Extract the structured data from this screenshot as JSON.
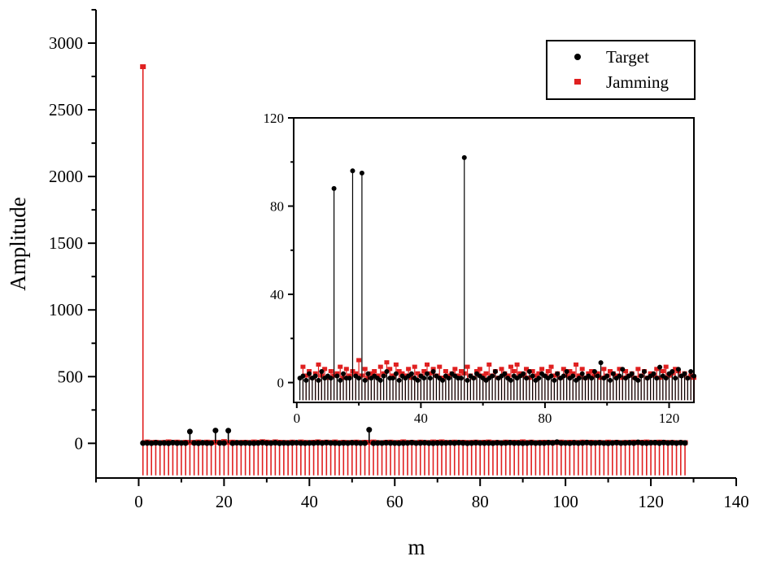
{
  "colors": {
    "target": "#000000",
    "jamming": "#e02020",
    "axis": "#000000"
  },
  "chart_data": [
    {
      "type": "stem",
      "panel": "main",
      "title": "",
      "xlabel": "m",
      "ylabel": "Amplitude",
      "xlim": [
        -10,
        140
      ],
      "ylim": [
        -260,
        3250
      ],
      "xticks": [
        0,
        20,
        40,
        60,
        80,
        100,
        120,
        140
      ],
      "yticks": [
        0,
        500,
        1000,
        1500,
        2000,
        2500,
        3000
      ],
      "grid": false,
      "legend": {
        "position": "top-right",
        "entries": [
          "Target",
          "Jamming"
        ]
      },
      "series": [
        {
          "name": "Target",
          "marker": "circle",
          "baseline": 0,
          "x": [
            1,
            2,
            3,
            4,
            5,
            6,
            7,
            8,
            9,
            10,
            11,
            12,
            13,
            14,
            15,
            16,
            17,
            18,
            19,
            20,
            21,
            22,
            23,
            24,
            25,
            26,
            27,
            28,
            29,
            30,
            31,
            32,
            33,
            34,
            35,
            36,
            37,
            38,
            39,
            40,
            41,
            42,
            43,
            44,
            45,
            46,
            47,
            48,
            49,
            50,
            51,
            52,
            53,
            54,
            55,
            56,
            57,
            58,
            59,
            60,
            61,
            62,
            63,
            64,
            65,
            66,
            67,
            68,
            69,
            70,
            71,
            72,
            73,
            74,
            75,
            76,
            77,
            78,
            79,
            80,
            81,
            82,
            83,
            84,
            85,
            86,
            87,
            88,
            89,
            90,
            91,
            92,
            93,
            94,
            95,
            96,
            97,
            98,
            99,
            100,
            101,
            102,
            103,
            104,
            105,
            106,
            107,
            108,
            109,
            110,
            111,
            112,
            113,
            114,
            115,
            116,
            117,
            118,
            119,
            120,
            121,
            122,
            123,
            124,
            125,
            126,
            127,
            128
          ],
          "y": [
            2,
            3,
            1,
            4,
            2,
            3,
            1,
            5,
            2,
            3,
            2,
            88,
            3,
            1,
            4,
            2,
            2,
            96,
            3,
            2,
            95,
            1,
            4,
            2,
            3,
            2,
            1,
            3,
            5,
            2,
            2,
            4,
            1,
            3,
            2,
            3,
            4,
            2,
            1,
            3,
            2,
            4,
            2,
            5,
            3,
            2,
            1,
            3,
            2,
            4,
            3,
            2,
            2,
            102,
            1,
            3,
            2,
            4,
            3,
            2,
            1,
            2,
            3,
            5,
            2,
            3,
            4,
            2,
            1,
            3,
            2,
            3,
            4,
            2,
            5,
            3,
            1,
            2,
            4,
            3,
            2,
            3,
            1,
            4,
            2,
            3,
            5,
            2,
            3,
            1,
            2,
            4,
            2,
            3,
            2,
            5,
            3,
            9,
            2,
            3,
            1,
            4,
            2,
            3,
            6,
            2,
            3,
            4,
            2,
            1,
            3,
            5,
            2,
            3,
            4,
            2,
            7,
            3,
            2,
            4,
            5,
            2,
            6,
            3,
            4,
            2,
            5,
            3
          ]
        },
        {
          "name": "Jamming",
          "marker": "square",
          "baseline": -240,
          "x": [
            1,
            2,
            3,
            4,
            5,
            6,
            7,
            8,
            9,
            10,
            11,
            12,
            13,
            14,
            15,
            16,
            17,
            18,
            19,
            20,
            21,
            22,
            23,
            24,
            25,
            26,
            27,
            28,
            29,
            30,
            31,
            32,
            33,
            34,
            35,
            36,
            37,
            38,
            39,
            40,
            41,
            42,
            43,
            44,
            45,
            46,
            47,
            48,
            49,
            50,
            51,
            52,
            53,
            54,
            55,
            56,
            57,
            58,
            59,
            60,
            61,
            62,
            63,
            64,
            65,
            66,
            67,
            68,
            69,
            70,
            71,
            72,
            73,
            74,
            75,
            76,
            77,
            78,
            79,
            80,
            81,
            82,
            83,
            84,
            85,
            86,
            87,
            88,
            89,
            90,
            91,
            92,
            93,
            94,
            95,
            96,
            97,
            98,
            99,
            100,
            101,
            102,
            103,
            104,
            105,
            106,
            107,
            108,
            109,
            110,
            111,
            112,
            113,
            114,
            115,
            116,
            117,
            118,
            119,
            120,
            121,
            122,
            123,
            124,
            125,
            126,
            127,
            128
          ],
          "y": [
            2820,
            7,
            3,
            5,
            2,
            4,
            8,
            3,
            6,
            2,
            5,
            3,
            4,
            7,
            2,
            6,
            3,
            5,
            4,
            10,
            3,
            6,
            2,
            4,
            5,
            3,
            7,
            4,
            9,
            6,
            3,
            8,
            5,
            4,
            3,
            6,
            2,
            7,
            4,
            3,
            5,
            8,
            4,
            6,
            3,
            7,
            2,
            5,
            3,
            4,
            6,
            3,
            5,
            4,
            7,
            3,
            2,
            5,
            6,
            3,
            4,
            8,
            3,
            5,
            2,
            6,
            4,
            3,
            7,
            5,
            8,
            4,
            3,
            6,
            2,
            5,
            3,
            4,
            6,
            3,
            5,
            7,
            3,
            4,
            2,
            6,
            3,
            5,
            4,
            8,
            3,
            6,
            2,
            4,
            5,
            3,
            4,
            2,
            6,
            3,
            5,
            4,
            3,
            6,
            2,
            5,
            3,
            4,
            2,
            6,
            3,
            5,
            2,
            4,
            3,
            6,
            2,
            5,
            7,
            3,
            4,
            6,
            5,
            3,
            4,
            2,
            3,
            2
          ]
        }
      ]
    },
    {
      "type": "stem",
      "panel": "inset",
      "title": "",
      "xlabel": "",
      "ylabel": "",
      "xlim": [
        -1,
        128
      ],
      "ylim": [
        -9,
        120
      ],
      "xticks": [
        0,
        40,
        80,
        120
      ],
      "yticks": [
        0,
        40,
        80,
        120
      ],
      "grid": false,
      "series": [
        {
          "name": "Target",
          "marker": "circle",
          "baseline": -8,
          "x": [
            1,
            2,
            3,
            4,
            5,
            6,
            7,
            8,
            9,
            10,
            11,
            12,
            13,
            14,
            15,
            16,
            17,
            18,
            19,
            20,
            21,
            22,
            23,
            24,
            25,
            26,
            27,
            28,
            29,
            30,
            31,
            32,
            33,
            34,
            35,
            36,
            37,
            38,
            39,
            40,
            41,
            42,
            43,
            44,
            45,
            46,
            47,
            48,
            49,
            50,
            51,
            52,
            53,
            54,
            55,
            56,
            57,
            58,
            59,
            60,
            61,
            62,
            63,
            64,
            65,
            66,
            67,
            68,
            69,
            70,
            71,
            72,
            73,
            74,
            75,
            76,
            77,
            78,
            79,
            80,
            81,
            82,
            83,
            84,
            85,
            86,
            87,
            88,
            89,
            90,
            91,
            92,
            93,
            94,
            95,
            96,
            97,
            98,
            99,
            100,
            101,
            102,
            103,
            104,
            105,
            106,
            107,
            108,
            109,
            110,
            111,
            112,
            113,
            114,
            115,
            116,
            117,
            118,
            119,
            120,
            121,
            122,
            123,
            124,
            125,
            126,
            127,
            128
          ],
          "y": [
            2,
            3,
            1,
            4,
            2,
            3,
            1,
            5,
            2,
            3,
            2,
            88,
            3,
            1,
            4,
            2,
            2,
            96,
            3,
            2,
            95,
            1,
            4,
            2,
            3,
            2,
            1,
            3,
            5,
            2,
            2,
            4,
            1,
            3,
            2,
            3,
            4,
            2,
            1,
            3,
            2,
            4,
            2,
            5,
            3,
            2,
            1,
            3,
            2,
            4,
            3,
            2,
            2,
            102,
            1,
            3,
            2,
            4,
            3,
            2,
            1,
            2,
            3,
            5,
            2,
            3,
            4,
            2,
            1,
            3,
            2,
            3,
            4,
            2,
            5,
            3,
            1,
            2,
            4,
            3,
            2,
            3,
            1,
            4,
            2,
            3,
            5,
            2,
            3,
            1,
            2,
            4,
            2,
            3,
            2,
            5,
            3,
            9,
            2,
            3,
            1,
            4,
            2,
            3,
            6,
            2,
            3,
            4,
            2,
            1,
            3,
            5,
            2,
            3,
            4,
            2,
            7,
            3,
            2,
            4,
            5,
            2,
            6,
            3,
            4,
            2,
            5,
            3
          ]
        },
        {
          "name": "Jamming",
          "marker": "square",
          "baseline": -8,
          "x": [
            2,
            3,
            4,
            5,
            6,
            7,
            8,
            9,
            10,
            11,
            12,
            13,
            14,
            15,
            16,
            17,
            18,
            19,
            20,
            21,
            22,
            23,
            24,
            25,
            26,
            27,
            28,
            29,
            30,
            31,
            32,
            33,
            34,
            35,
            36,
            37,
            38,
            39,
            40,
            41,
            42,
            43,
            44,
            45,
            46,
            47,
            48,
            49,
            50,
            51,
            52,
            53,
            54,
            55,
            56,
            57,
            58,
            59,
            60,
            61,
            62,
            63,
            64,
            65,
            66,
            67,
            68,
            69,
            70,
            71,
            72,
            73,
            74,
            75,
            76,
            77,
            78,
            79,
            80,
            81,
            82,
            83,
            84,
            85,
            86,
            87,
            88,
            89,
            90,
            91,
            92,
            93,
            94,
            95,
            96,
            97,
            98,
            99,
            100,
            101,
            102,
            103,
            104,
            105,
            106,
            107,
            108,
            109,
            110,
            111,
            112,
            113,
            114,
            115,
            116,
            117,
            118,
            119,
            120,
            121,
            122,
            123,
            124,
            125,
            126,
            127,
            128
          ],
          "y": [
            7,
            3,
            5,
            2,
            4,
            8,
            3,
            6,
            2,
            5,
            3,
            4,
            7,
            2,
            6,
            3,
            5,
            4,
            10,
            3,
            6,
            2,
            4,
            5,
            3,
            7,
            4,
            9,
            6,
            3,
            8,
            5,
            4,
            3,
            6,
            2,
            7,
            4,
            3,
            5,
            8,
            4,
            6,
            3,
            7,
            2,
            5,
            3,
            4,
            6,
            3,
            5,
            4,
            7,
            3,
            2,
            5,
            6,
            3,
            4,
            8,
            3,
            5,
            2,
            6,
            4,
            3,
            7,
            5,
            8,
            4,
            3,
            6,
            2,
            5,
            3,
            4,
            6,
            3,
            5,
            7,
            3,
            4,
            2,
            6,
            3,
            5,
            4,
            8,
            3,
            6,
            2,
            4,
            5,
            3,
            4,
            2,
            6,
            3,
            5,
            4,
            3,
            6,
            2,
            5,
            3,
            4,
            2,
            6,
            3,
            5,
            2,
            4,
            3,
            6,
            2,
            5,
            7,
            3,
            4,
            6,
            5,
            3,
            4,
            2,
            3,
            2
          ]
        }
      ]
    }
  ]
}
